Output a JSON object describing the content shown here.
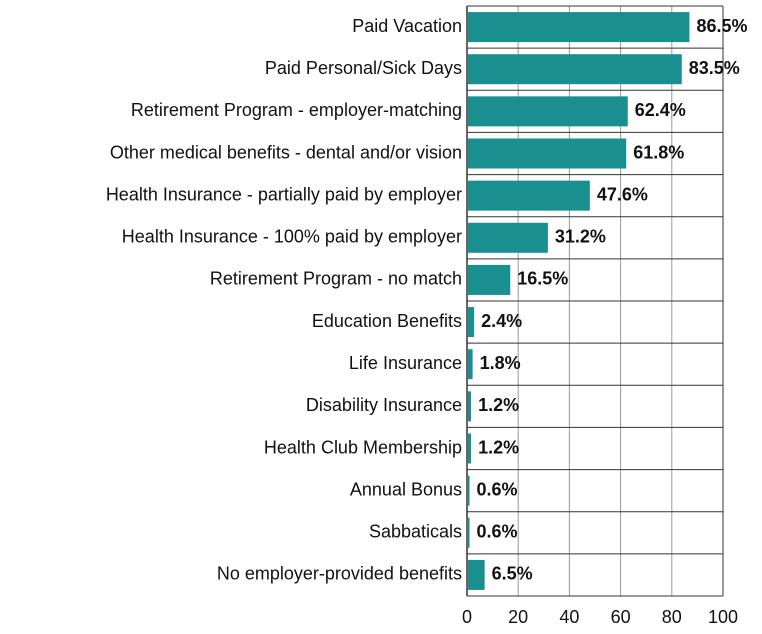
{
  "chart_data": {
    "type": "bar",
    "orientation": "horizontal",
    "categories": [
      "Paid Vacation",
      "Paid Personal/Sick Days",
      "Retirement Program - employer-matching",
      "Other medical benefits - dental and/or vision",
      "Health Insurance - partially paid by employer",
      "Health Insurance - 100% paid by employer",
      "Retirement Program - no match",
      "Education Benefits",
      "Life Insurance",
      "Disability Insurance",
      "Health Club Membership",
      "Annual Bonus",
      "Sabbaticals",
      "No employer-provided benefits"
    ],
    "values": [
      86.5,
      83.5,
      62.4,
      61.8,
      47.6,
      31.2,
      16.5,
      2.4,
      1.8,
      1.2,
      1.2,
      0.6,
      0.6,
      6.5
    ],
    "value_labels": [
      "86.5%",
      "83.5%",
      "62.4%",
      "61.8%",
      "47.6%",
      "31.2%",
      "16.5%",
      "2.4%",
      "1.8%",
      "1.2%",
      "1.2%",
      "0.6%",
      "0.6%",
      "6.5%"
    ],
    "color": "#1a8f8f",
    "xlim": [
      0,
      100
    ],
    "xticks": [
      0,
      20,
      40,
      60,
      80,
      100
    ],
    "grid": true
  }
}
